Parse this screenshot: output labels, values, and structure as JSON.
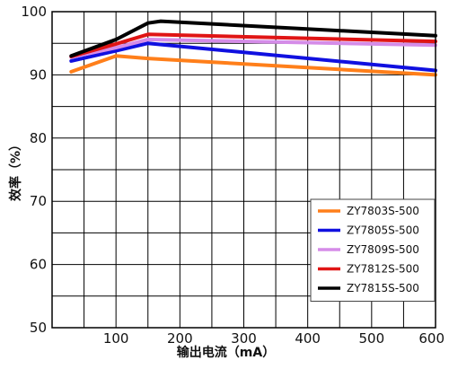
{
  "chart_data": {
    "type": "line",
    "title": "",
    "xlabel": "输出电流（mA）",
    "ylabel": "效率（%）",
    "xlim": [
      0,
      600
    ],
    "ylim": [
      50,
      100
    ],
    "x_ticks": [
      100,
      200,
      300,
      400,
      500,
      600
    ],
    "y_ticks": [
      50,
      60,
      70,
      80,
      90,
      100
    ],
    "grid": true,
    "legend_position": "bottom-right",
    "series": [
      {
        "name": "ZY7803S-500",
        "color": "#ff7f1a",
        "points": [
          [
            30,
            90.5
          ],
          [
            100,
            93.0
          ],
          [
            150,
            92.6
          ],
          [
            600,
            90.0
          ]
        ]
      },
      {
        "name": "ZY7805S-500",
        "color": "#1010e0",
        "points": [
          [
            30,
            92.2
          ],
          [
            100,
            93.8
          ],
          [
            150,
            95.0
          ],
          [
            600,
            90.7
          ]
        ]
      },
      {
        "name": "ZY7809S-500",
        "color": "#d58ce8",
        "points": [
          [
            30,
            92.8
          ],
          [
            100,
            94.3
          ],
          [
            150,
            95.6
          ],
          [
            600,
            94.7
          ]
        ]
      },
      {
        "name": "ZY7812S-500",
        "color": "#e01515",
        "points": [
          [
            30,
            92.9
          ],
          [
            100,
            94.9
          ],
          [
            150,
            96.4
          ],
          [
            600,
            95.3
          ]
        ]
      },
      {
        "name": "ZY7815S-500",
        "color": "#000000",
        "points": [
          [
            30,
            93.0
          ],
          [
            100,
            95.6
          ],
          [
            150,
            98.2
          ],
          [
            170,
            98.5
          ],
          [
            600,
            96.2
          ]
        ]
      }
    ]
  }
}
